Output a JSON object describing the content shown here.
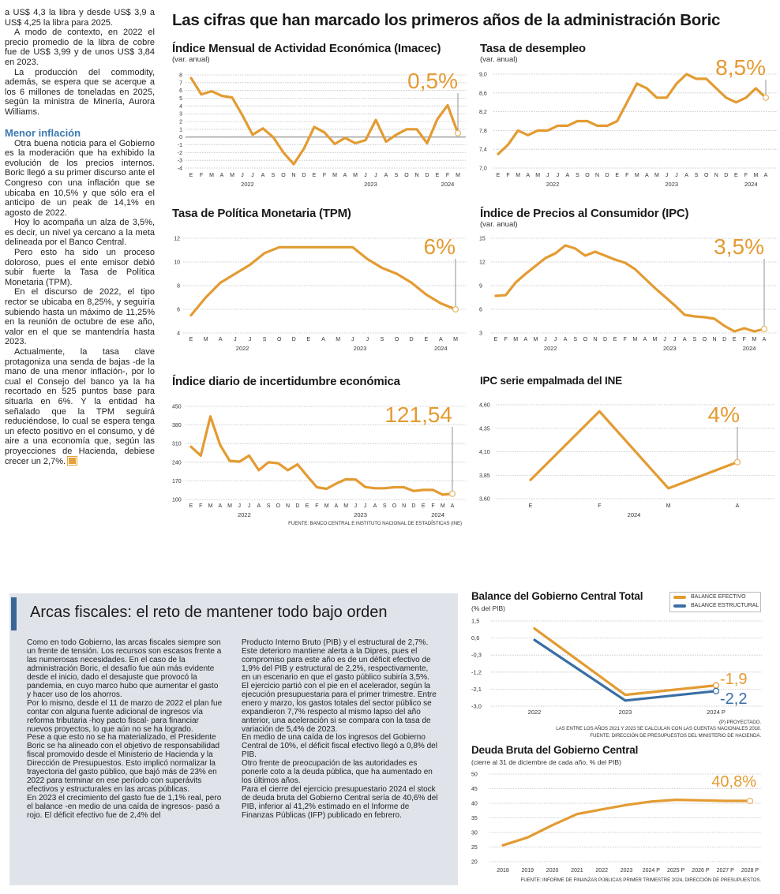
{
  "main_title": "Las cifras que han marcado los primeros años de la administración Boric",
  "colors": {
    "accent": "#e39b32",
    "structural": "#3a6ea5",
    "heading": "#3b78b0",
    "panel_bg": "#e0e4ea"
  },
  "article": {
    "paragraphs_a": [
      "a US$ 4,3 la libra y desde US$ 3,9 a US$ 4,25 la libra para 2025.",
      "A modo de contexto, en 2022 el precio promedio de la libra de cobre fue de US$ 3,99 y de unos US$ 3,84 en 2023.",
      "La producción del commodity, además, se espera que se acerque a los 6 millones de toneladas en 2025, según la ministra de Minería, Aurora Williams."
    ],
    "subheading": "Menor inflación",
    "paragraphs_b": [
      "Otra buena noticia para el Gobierno es la moderación que ha exhibido la evolución de los precios internos. Boric llegó a su primer discurso ante el Congreso con una inflación que se ubicaba en 10,5% y que sólo era el anticipo de un peak de 14,1% en agosto de 2022.",
      "Hoy lo acompaña un alza de 3,5%, es decir, un nivel ya cercano a la meta delineada por el Banco Central.",
      "Pero esto ha sido un proceso doloroso, pues el ente emisor debió subir fuerte la Tasa de Política Monetaria (TPM).",
      "En el discurso de 2022, el tipo rector se ubicaba en 8,25%, y seguiría subiendo hasta un máximo de 11,25% en la reunión de octubre de ese año, valor en el que se mantendría hasta 2023.",
      "Actualmente, la tasa clave protagoniza una senda de bajas -de la mano de una menor inflación-, por lo cual el Consejo del banco ya la ha recortado en 525 puntos base para situarla en 6%. Y la entidad ha señalado que la TPM seguirá reduciéndose, lo cual se espera tenga un efecto positivo en el consumo, y dé aire a una economía que, según las proyecciones de Hacienda, debiese crecer un 2,7%."
    ]
  },
  "fiscal_box": {
    "title": "Arcas fiscales: el reto de mantener todo bajo orden",
    "col1": [
      "Como en todo Gobierno, las arcas fiscales siempre son un frente de tensión. Los recursos son escasos frente a las numerosas necesidades. En el caso de la administración Boric, el desafío fue aún más evidente desde el inicio, dado el desajuste que provocó la pandemia, en cuyo marco hubo que aumentar el gasto y hacer uso de los ahorros.",
      "Por lo mismo, desde el 11 de marzo de 2022 el plan fue contar con alguna fuente adicional de ingresos vía reforma tributaria -hoy pacto fiscal- para financiar nuevos proyectos, lo que aún no se ha logrado.",
      "Pese a que esto no se ha materializado, el Presidente Boric se ha alineado con el objetivo de responsabilidad fiscal promovido desde el Ministerio de Hacienda y la Dirección de Presupuestos. Esto implicó normalizar la trayectoria del gasto público, que bajó más de 23% en 2022 para terminar en ese período con superávits efectivos y estructurales en las arcas públicas.",
      "En 2023 el crecimiento del gasto fue de 1,1% real, pero el balance -en medio de una caída de ingresos- pasó a rojo. El déficit efectivo fue de 2,4% del"
    ],
    "col2": [
      "Producto Interno Bruto (PIB) y el estructural de 2,7%. Este deterioro mantiene alerta a la Dipres, pues el compromiso para este año es de un déficit efectivo de 1,9% del PIB y estructural de 2,2%, respectivamente, en un escenario en que el gasto público subiría 3,5%.",
      "El ejercicio partió con el pie en el acelerador, según la ejecución presupuestaria para el primer trimestre. Entre enero y marzo, los gastos totales del sector público se expandieron 7,7% respecto al mismo lapso del año anterior, una aceleración si se compara con la tasa de variación de 5,4% de 2023.",
      "En medio de una caída de los ingresos del Gobierno Central de 10%, el déficit fiscal efectivo llegó a 0,8% del PIB.",
      "Otro frente de preocupación de las autoridades es ponerle coto a la deuda pública, que ha aumentado en los últimos años.",
      "Para el cierre del ejercicio presupuestario 2024 el stock de deuda bruta del Gobierno Central sería de 40,6% del PIB, inferior al 41,2% estimado en el Informe de Finanzas Públicas (IFP) publicado en febrero."
    ]
  },
  "chart_data": [
    {
      "id": "imacec",
      "type": "line",
      "title": "Índice Mensual de Actividad Económica (Imacec)",
      "subtitle": "(var. anual)",
      "x": [
        "E",
        "F",
        "M",
        "A",
        "M",
        "J",
        "J",
        "A",
        "S",
        "O",
        "N",
        "D",
        "E",
        "F",
        "M",
        "A",
        "M",
        "J",
        "J",
        "A",
        "S",
        "O",
        "N",
        "D",
        "E",
        "F",
        "M"
      ],
      "years": [
        "2022",
        "2023",
        "2024"
      ],
      "values": [
        7.6,
        5.5,
        5.9,
        5.3,
        5.1,
        2.8,
        0.3,
        1.1,
        0.0,
        -2.0,
        -3.5,
        -1.5,
        1.3,
        0.6,
        -0.9,
        -0.1,
        -0.8,
        -0.4,
        2.2,
        -0.6,
        0.3,
        1.0,
        1.0,
        -0.8,
        2.3,
        4.1,
        0.5
      ],
      "yticks": [
        "8",
        "7",
        "6",
        "5",
        "4",
        "3",
        "2",
        "1",
        "0",
        "-1",
        "-2",
        "-3",
        "-4"
      ],
      "ylim": [
        -4,
        8
      ],
      "zero_line": true,
      "grid": true,
      "callout": "0,5%"
    },
    {
      "id": "desempleo",
      "type": "line",
      "title": "Tasa de desempleo",
      "subtitle": "(var. anual)",
      "x": [
        "E",
        "F",
        "M",
        "A",
        "M",
        "J",
        "J",
        "A",
        "S",
        "O",
        "N",
        "D",
        "E",
        "F",
        "M",
        "A",
        "M",
        "J",
        "J",
        "A",
        "S",
        "O",
        "N",
        "D",
        "E",
        "F",
        "M",
        "A"
      ],
      "years": [
        "2022",
        "2023",
        "2024"
      ],
      "values": [
        7.3,
        7.5,
        7.8,
        7.7,
        7.8,
        7.8,
        7.9,
        7.9,
        8.0,
        8.0,
        7.9,
        7.9,
        8.0,
        8.4,
        8.8,
        8.7,
        8.5,
        8.5,
        8.8,
        9.0,
        8.9,
        8.9,
        8.7,
        8.5,
        8.4,
        8.5,
        8.7,
        8.5
      ],
      "yticks": [
        "9,0",
        "8,6",
        "8,2",
        "7,8",
        "7,4",
        "7,0"
      ],
      "ylim": [
        7.0,
        9.0
      ],
      "grid": true,
      "callout": "8,5%"
    },
    {
      "id": "tpm",
      "type": "line",
      "title": "Tasa de Política Monetaria (TPM)",
      "subtitle": "",
      "x": [
        "E",
        "M",
        "A",
        "J",
        "J",
        "S",
        "O",
        "D",
        "E",
        "A",
        "M",
        "J",
        "J",
        "S",
        "O",
        "D",
        "E",
        "A",
        "M"
      ],
      "years": [
        "2022",
        "2023",
        "2024"
      ],
      "values": [
        5.5,
        7.0,
        8.25,
        9.0,
        9.75,
        10.75,
        11.25,
        11.25,
        11.25,
        11.25,
        11.25,
        11.25,
        10.25,
        9.5,
        9.0,
        8.25,
        7.25,
        6.5,
        6.0
      ],
      "yticks": [
        "12",
        "10",
        "8",
        "6",
        "4"
      ],
      "ylim": [
        4,
        12
      ],
      "grid": true,
      "callout": "6%"
    },
    {
      "id": "ipc",
      "type": "line",
      "title": "Índice de Precios al Consumidor (IPC)",
      "subtitle": "(var. anual)",
      "x": [
        "E",
        "F",
        "M",
        "A",
        "M",
        "J",
        "J",
        "A",
        "S",
        "O",
        "N",
        "D",
        "E",
        "F",
        "M",
        "A",
        "M",
        "J",
        "J",
        "A",
        "S",
        "O",
        "N",
        "D",
        "E",
        "F",
        "M",
        "A"
      ],
      "years": [
        "2022",
        "2023",
        "2024"
      ],
      "values": [
        7.7,
        7.8,
        9.4,
        10.5,
        11.5,
        12.5,
        13.1,
        14.1,
        13.7,
        12.8,
        13.3,
        12.8,
        12.3,
        11.9,
        11.1,
        9.9,
        8.7,
        7.6,
        6.5,
        5.3,
        5.1,
        5.0,
        4.8,
        3.9,
        3.2,
        3.6,
        3.2,
        3.5
      ],
      "yticks": [
        "15",
        "12",
        "9",
        "6",
        "3"
      ],
      "ylim": [
        3,
        15
      ],
      "grid": true,
      "callout": "3,5%"
    },
    {
      "id": "incertidumbre",
      "type": "line",
      "title": "Índice diario de incertidumbre económica",
      "subtitle": "",
      "x": [
        "E",
        "F",
        "M",
        "A",
        "M",
        "J",
        "J",
        "A",
        "S",
        "O",
        "N",
        "D",
        "E",
        "F",
        "M",
        "A",
        "M",
        "J",
        "J",
        "A",
        "S",
        "O",
        "N",
        "D",
        "E",
        "F",
        "M",
        "A"
      ],
      "years": [
        "2022",
        "2023",
        "2024"
      ],
      "values": [
        298,
        265,
        412,
        305,
        245,
        242,
        265,
        210,
        240,
        236,
        210,
        232,
        188,
        146,
        140,
        160,
        176,
        175,
        147,
        142,
        142,
        146,
        146,
        132,
        136,
        136,
        118,
        121.54
      ],
      "yticks": [
        "450",
        "380",
        "310",
        "240",
        "170",
        "100"
      ],
      "ylim": [
        100,
        450
      ],
      "grid": true,
      "callout": "121,54",
      "source": "FUENTE: BANCO CENTRAL E INSTITUTO NACIONAL DE ESTADÍSTICAS (INE)"
    },
    {
      "id": "empalmada",
      "type": "line",
      "title": "IPC serie empalmada del INE",
      "subtitle": "",
      "x": [
        "E",
        "F",
        "M",
        "A"
      ],
      "years": [
        "2024"
      ],
      "values": [
        3.8,
        4.53,
        3.71,
        3.99
      ],
      "yticks": [
        "4,60",
        "4,35",
        "4,10",
        "3,85",
        "3,60"
      ],
      "ylim": [
        3.6,
        4.6
      ],
      "grid": true,
      "callout": "4%"
    },
    {
      "id": "balance",
      "type": "line",
      "title": "Balance del Gobierno Central Total",
      "subtitle": "(% del PIB)",
      "x": [
        "2022",
        "2023",
        "2024 P"
      ],
      "series": [
        {
          "name": "BALANCE EFECTIVO",
          "values": [
            1.1,
            -2.4,
            -1.9
          ],
          "color": "#e39b32",
          "callout": "-1,9"
        },
        {
          "name": "BALANCE ESTRUCTURAL",
          "values": [
            0.5,
            -2.7,
            -2.2
          ],
          "color": "#3a6ea5",
          "callout": "-2,2"
        }
      ],
      "yticks": [
        "1,5",
        "0,6",
        "-0,3",
        "-1,2",
        "-2,1",
        "-3,0"
      ],
      "ylim": [
        -3.0,
        1.5
      ],
      "grid": true,
      "legend": "top-right",
      "notes": [
        "(P) PROYECTADO.",
        "LAS ENTRE LOS AÑOS 2021 Y 2023 SE CALCULAN  CON LAS CUENTAS NACIONALES 2018.",
        "FUENTE: DIRECCIÓN DE PRESUPUESTOS DEL MINISTERIO DE HACIENDA."
      ]
    },
    {
      "id": "deuda",
      "type": "line",
      "title": "Deuda Bruta del Gobierno Central",
      "subtitle": "(cierre al 31 de diciembre de cada año, % del PIB)",
      "x": [
        "2018",
        "2019",
        "2020",
        "2021",
        "2022",
        "2023",
        "2024 P",
        "2025 P",
        "2026 P",
        "2027 P",
        "2028 P"
      ],
      "values": [
        25.6,
        28.3,
        32.5,
        36.3,
        37.9,
        39.4,
        40.6,
        41.2,
        41.0,
        40.8,
        40.8
      ],
      "yticks": [
        "50",
        "45",
        "40",
        "35",
        "30",
        "25",
        "20"
      ],
      "ylim": [
        20,
        50
      ],
      "grid": true,
      "callout": "40,8%",
      "source": "FUENTE: INFORME DE FINANZAS PÚBLICAS PRIMER TRIMESTRE 2024, DIRECCIÓN DE PRESUPUESTOS."
    }
  ]
}
